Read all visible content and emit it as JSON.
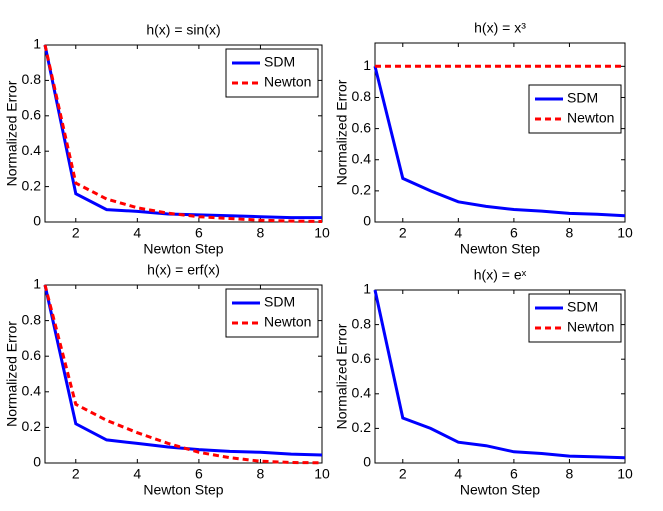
{
  "chart_data": [
    {
      "type": "line",
      "title": "h(x) = sin(x)",
      "x_label": "Newton Step",
      "y_label": "Normalized Error",
      "x": [
        1,
        2,
        3,
        4,
        5,
        6,
        7,
        8,
        9,
        10
      ],
      "xlim": [
        1,
        10
      ],
      "xticks": [
        2,
        4,
        6,
        8,
        10
      ],
      "ylim": [
        0,
        1
      ],
      "yticks": [
        0,
        0.2,
        0.4,
        0.6,
        0.8,
        1
      ],
      "legend": "upper right",
      "series": [
        {
          "name": "SDM",
          "color": "#0000ff",
          "linestyle": "solid",
          "values": [
            1,
            0.16,
            0.07,
            0.06,
            0.045,
            0.04,
            0.035,
            0.03,
            0.025,
            0.025
          ]
        },
        {
          "name": "Newton",
          "color": "#ff0000",
          "linestyle": "dashed",
          "values": [
            1,
            0.22,
            0.13,
            0.08,
            0.05,
            0.03,
            0.02,
            0.01,
            0.005,
            0.003
          ]
        }
      ]
    },
    {
      "type": "line",
      "title": "h(x) = x³",
      "x_label": "Newton Step",
      "y_label": "Normalized Error",
      "x": [
        1,
        2,
        3,
        4,
        5,
        6,
        7,
        8,
        9,
        10
      ],
      "xlim": [
        1,
        10
      ],
      "xticks": [
        2,
        4,
        6,
        8,
        10
      ],
      "ylim": [
        0,
        1.15
      ],
      "yticks": [
        0,
        0.2,
        0.4,
        0.6,
        0.8,
        1
      ],
      "legend": "upper right",
      "series": [
        {
          "name": "SDM",
          "color": "#0000ff",
          "linestyle": "solid",
          "values": [
            1,
            0.28,
            0.2,
            0.13,
            0.1,
            0.08,
            0.07,
            0.055,
            0.05,
            0.04
          ]
        },
        {
          "name": "Newton",
          "color": "#ff0000",
          "linestyle": "dashed",
          "values": [
            1,
            1,
            1,
            1,
            1,
            1,
            1,
            1,
            1,
            1
          ]
        }
      ]
    },
    {
      "type": "line",
      "title": "h(x) = erf(x)",
      "x_label": "Newton Step",
      "y_label": "Normalized Error",
      "x": [
        1,
        2,
        3,
        4,
        5,
        6,
        7,
        8,
        9,
        10
      ],
      "xlim": [
        1,
        10
      ],
      "xticks": [
        2,
        4,
        6,
        8,
        10
      ],
      "ylim": [
        0,
        1
      ],
      "yticks": [
        0,
        0.2,
        0.4,
        0.6,
        0.8,
        1
      ],
      "legend": "upper right",
      "series": [
        {
          "name": "SDM",
          "color": "#0000ff",
          "linestyle": "solid",
          "values": [
            1,
            0.22,
            0.13,
            0.11,
            0.09,
            0.075,
            0.065,
            0.06,
            0.05,
            0.045
          ]
        },
        {
          "name": "Newton",
          "color": "#ff0000",
          "linestyle": "dashed",
          "values": [
            1,
            0.33,
            0.24,
            0.17,
            0.11,
            0.06,
            0.03,
            0.01,
            0.003,
            0.001
          ]
        }
      ]
    },
    {
      "type": "line",
      "title": "h(x) = eˣ",
      "x_label": "Newton Step",
      "y_label": "Normalized Error",
      "x": [
        1,
        2,
        3,
        4,
        5,
        6,
        7,
        8,
        9,
        10
      ],
      "xlim": [
        1,
        10
      ],
      "xticks": [
        2,
        4,
        6,
        8,
        10
      ],
      "ylim": [
        0,
        1
      ],
      "yticks": [
        0,
        0.2,
        0.4,
        0.6,
        0.8,
        1
      ],
      "legend": "upper right",
      "series": [
        {
          "name": "SDM",
          "color": "#0000ff",
          "linestyle": "solid",
          "values": [
            1,
            0.26,
            0.2,
            0.12,
            0.1,
            0.065,
            0.055,
            0.04,
            0.035,
            0.03
          ]
        },
        {
          "name": "Newton",
          "color": "#ff0000",
          "linestyle": "dashed",
          "values": [
            null,
            null,
            null,
            null,
            null,
            null,
            null,
            null,
            null,
            null
          ]
        }
      ]
    }
  ]
}
